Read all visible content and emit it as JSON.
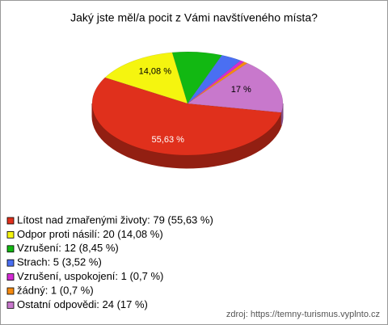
{
  "chart_data": {
    "type": "pie",
    "title": "Jaký jste měl/a pocit z Vámi navštíveného místa?",
    "categories": [
      "Lítost nad zmařenými životy",
      "Odpor proti násilí",
      "Vzrušení",
      "Strach",
      "Vzrušení, uspokojení",
      "žádný",
      "Ostatní odpovědi"
    ],
    "values": [
      55.63,
      14.08,
      8.45,
      3.52,
      0.7,
      0.7,
      17
    ],
    "value_labels": [
      "55,63 %",
      "14,08 %",
      null,
      null,
      null,
      null,
      "17 %"
    ],
    "legend_labels": [
      "Lítost nad zmařenými životy: 79 (55,63 %)",
      "Odpor proti násilí: 20 (14,08 %)",
      "Vzrušení: 12 (8,45 %)",
      "Strach: 5 (3,52 %)",
      "Vzrušení, uspokojení: 1 (0,7 %)",
      "žádný: 1 (0,7 %)",
      "Ostatní odpovědi: 24 (17 %)"
    ],
    "colors": [
      "#e0301c",
      "#f5f50f",
      "#12b812",
      "#4a6ff2",
      "#d42ad4",
      "#f58a10",
      "#c878cc"
    ],
    "source": "zdroj: https://temny-turismus.vyplnto.cz"
  }
}
